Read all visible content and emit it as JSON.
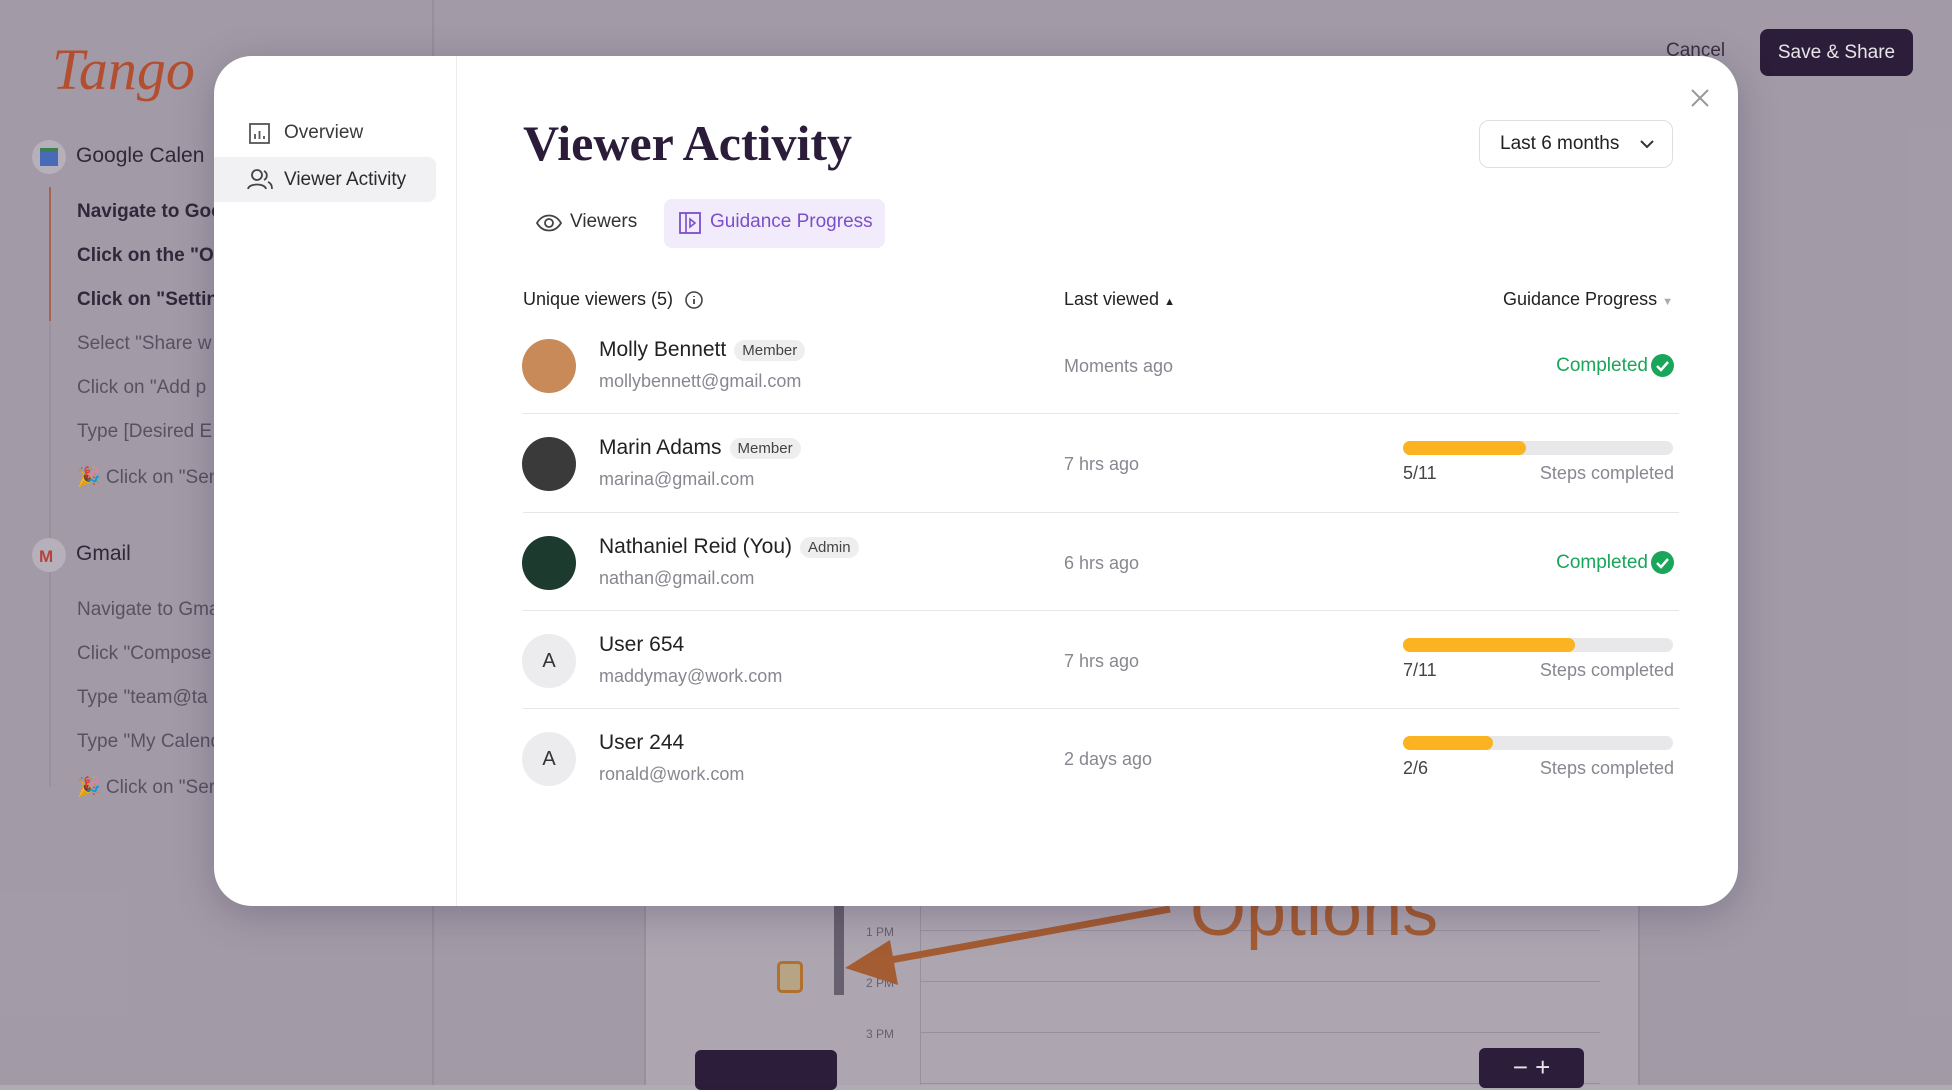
{
  "app": {
    "logo": "Tango",
    "cancel": "Cancel",
    "save_share": "Save & Share",
    "sections": [
      {
        "title": "Google Calen",
        "steps": [
          "Navigate to Goo",
          "Click on the \"Op",
          "Click on \"Setting",
          "Select \"Share w",
          "Click on \"Add p",
          "Type [Desired E",
          "🎉 Click on \"Sen"
        ]
      },
      {
        "title": "Gmail",
        "steps": [
          "Navigate to Gma",
          "Click \"Compose",
          "Type \"team@ta",
          "Type \"My Calend",
          "🎉 Click on \"Ser"
        ]
      }
    ],
    "canvas": {
      "annotation": "Options",
      "times": [
        "1 PM",
        "2 PM",
        "3 PM"
      ]
    }
  },
  "modal": {
    "nav": [
      "Overview",
      "Viewer Activity"
    ],
    "title": "Viewer Activity",
    "range": "Last 6 months",
    "tabs": [
      "Viewers",
      "Guidance Progress"
    ],
    "columns": [
      "Unique viewers (5)",
      "Last viewed",
      "Guidance Progress"
    ],
    "rows": [
      {
        "name": "Molly Bennett",
        "role": "Member",
        "email": "mollybennett@gmail.com",
        "last_viewed": "Moments ago",
        "status": "Completed"
      },
      {
        "name": "Marin Adams",
        "role": "Member",
        "email": "marina@gmail.com",
        "last_viewed": "7 hrs ago",
        "progress": {
          "text": "5/11",
          "done": 5,
          "total": 11
        },
        "caption": "Steps completed"
      },
      {
        "name": "Nathaniel Reid (You)",
        "role": "Admin",
        "email": "nathan@gmail.com",
        "last_viewed": "6 hrs ago",
        "status": "Completed"
      },
      {
        "initial": "A",
        "name": "User 654",
        "email": "maddymay@work.com",
        "last_viewed": "7 hrs ago",
        "progress": {
          "text": "7/11",
          "done": 7,
          "total": 11
        },
        "caption": "Steps completed"
      },
      {
        "initial": "A",
        "name": "User 244",
        "email": "ronald@work.com",
        "last_viewed": "2 days ago",
        "progress": {
          "text": "2/6",
          "done": 2,
          "total": 6
        },
        "caption": "Steps completed"
      }
    ]
  }
}
